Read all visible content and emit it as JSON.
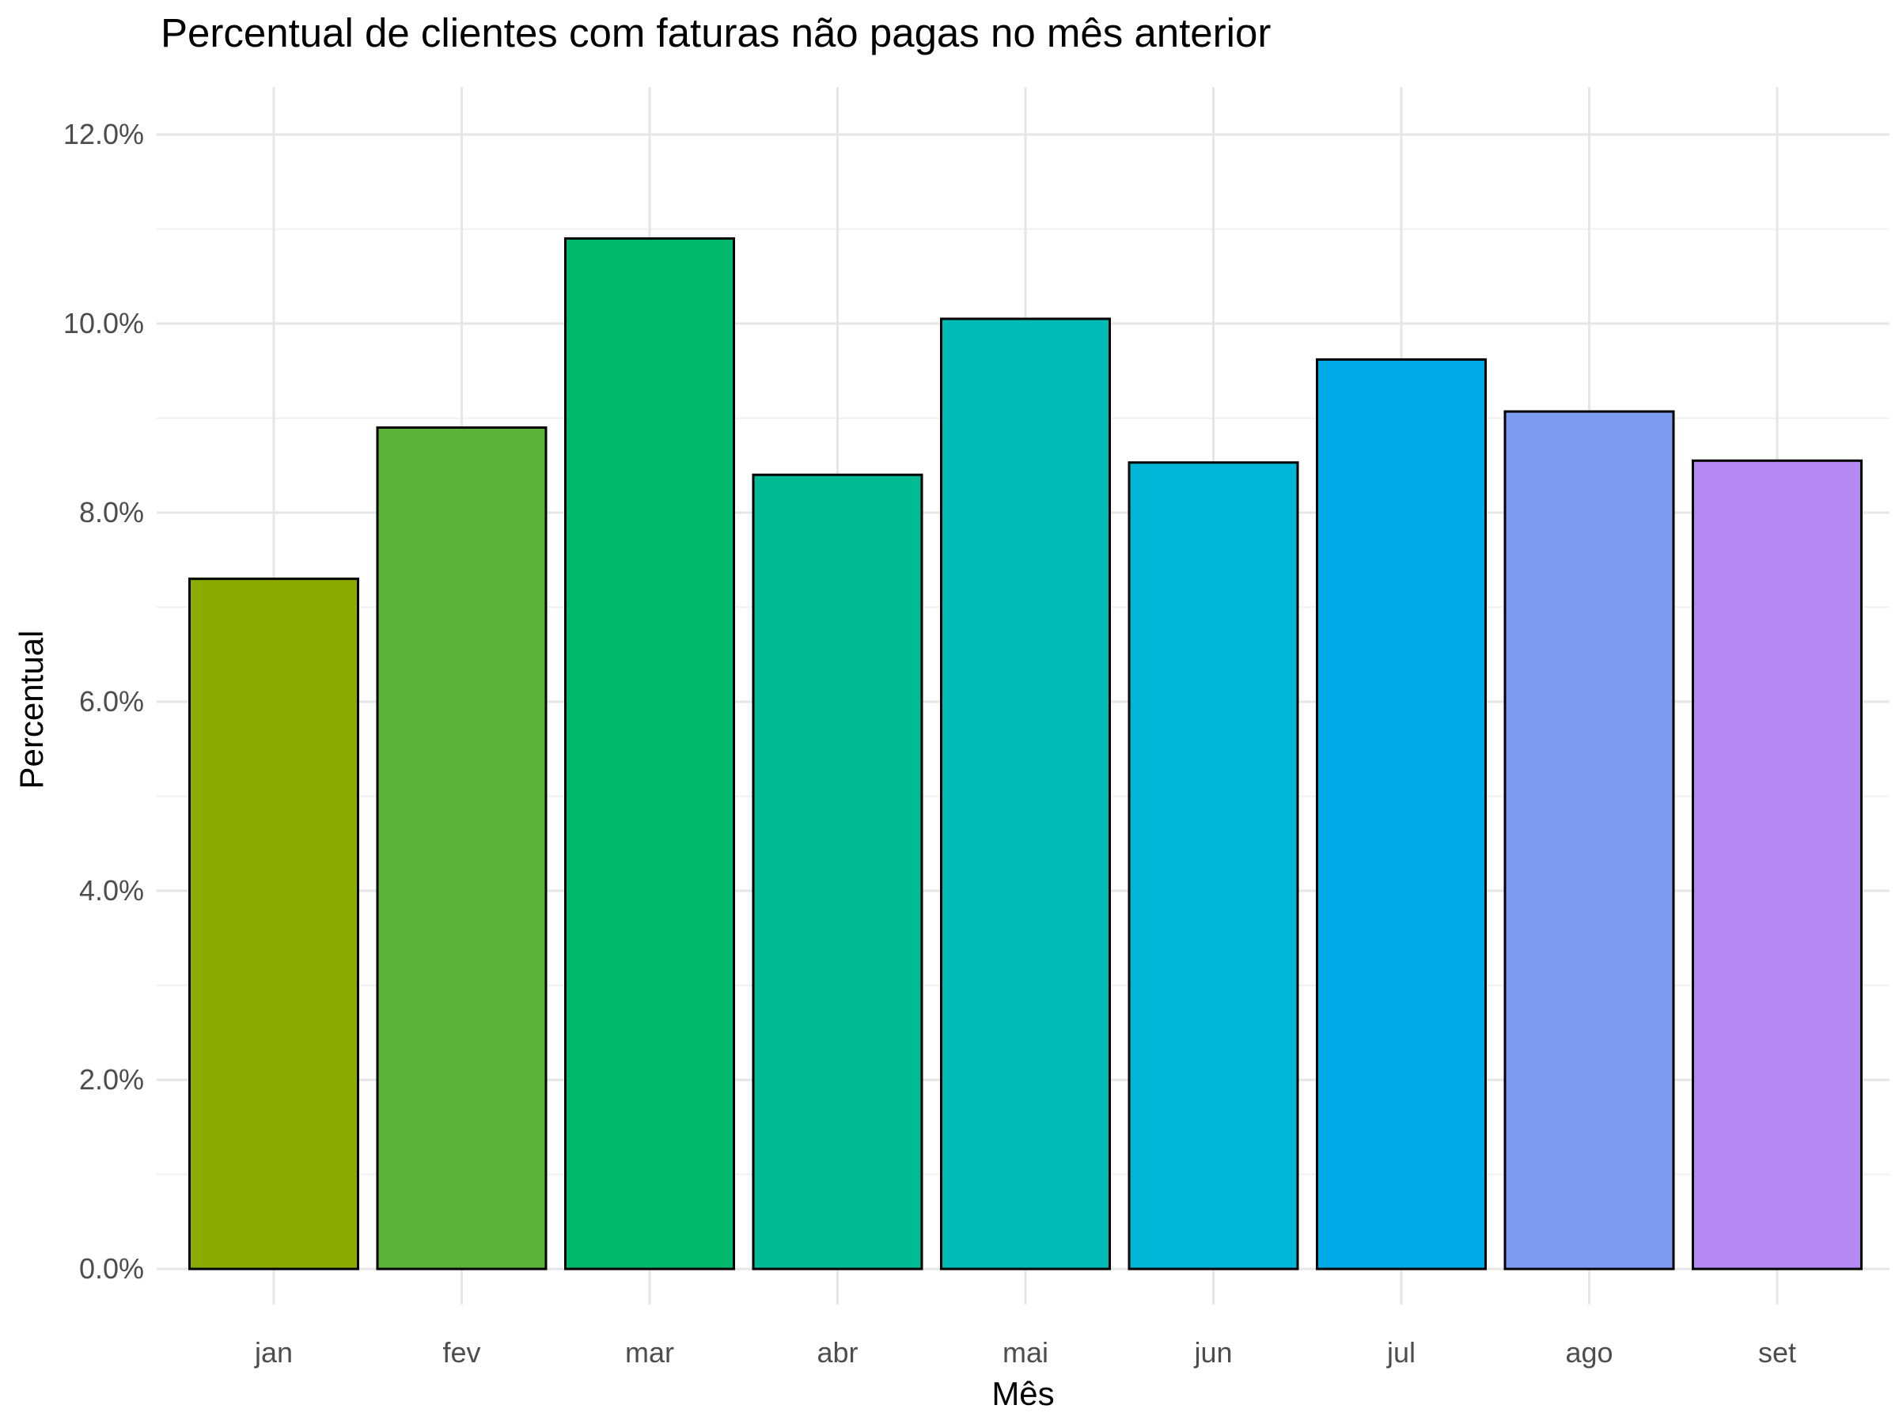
{
  "chart_data": {
    "type": "bar",
    "title": "Percentual de clientes com faturas não pagas no mês anterior",
    "xlabel": "Mês",
    "ylabel": "Percentual",
    "categories": [
      "jan",
      "fev",
      "mar",
      "abr",
      "mai",
      "jun",
      "jul",
      "ago",
      "set"
    ],
    "values": [
      7.3,
      8.9,
      10.9,
      8.4,
      10.05,
      8.53,
      9.62,
      9.07,
      8.55
    ],
    "value_unit": "%",
    "ylim": [
      0,
      12.5
    ],
    "yticks": [
      0,
      2,
      4,
      6,
      8,
      10,
      12
    ],
    "ytick_labels": [
      "0.0%",
      "2.0%",
      "4.0%",
      "6.0%",
      "8.0%",
      "10.0%",
      "12.0%"
    ],
    "colors": [
      "#8CAB00",
      "#5BB33A",
      "#00B76B",
      "#00BB93",
      "#00BAB8",
      "#00B5D5",
      "#00A9E8",
      "#7F9CF3",
      "#B688F1"
    ],
    "bar_outline": "#000000",
    "grid": true,
    "legend": "none"
  }
}
